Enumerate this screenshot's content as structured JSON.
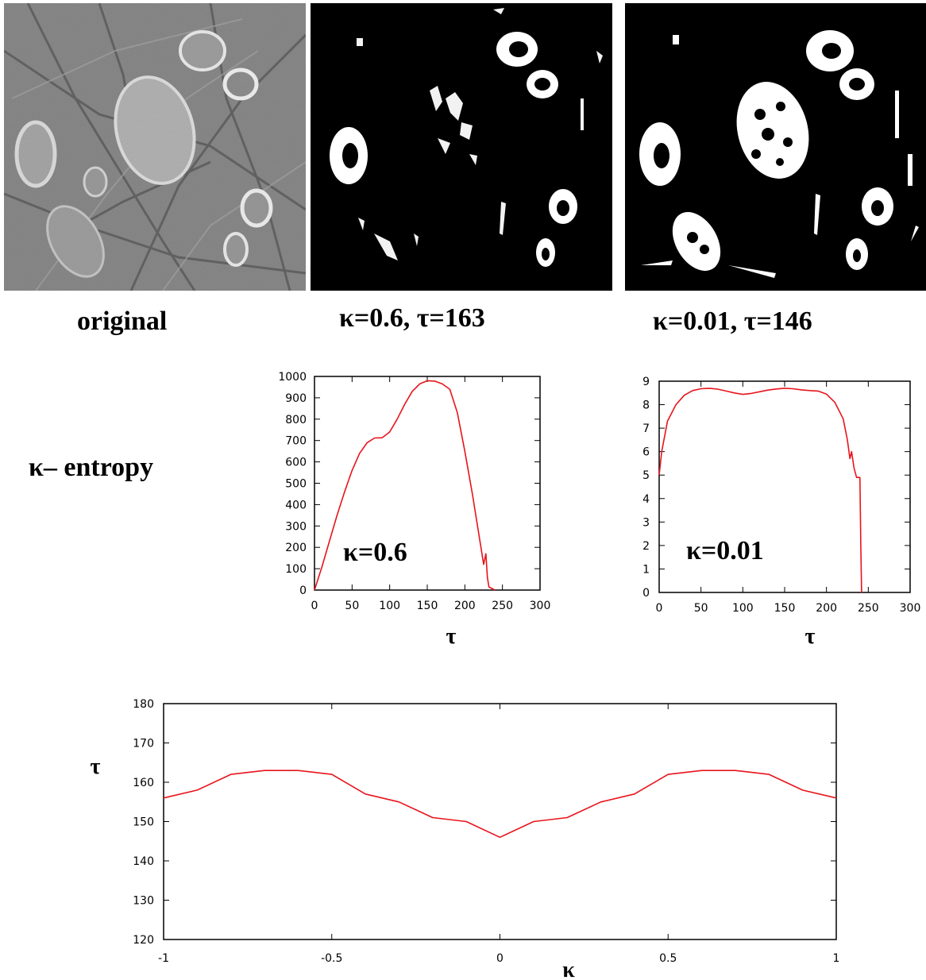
{
  "images": {
    "original_caption": "original",
    "kappa06_caption": "κ=0.6, τ=163",
    "kappa001_caption": "κ=0.01, τ=146"
  },
  "row_label": "κ– entropy",
  "colors": {
    "curve": "#e8141c",
    "axis": "#000000",
    "background": "#ffffff"
  },
  "chart_data": [
    {
      "type": "line",
      "annotation": "κ=0.6",
      "xlabel": "τ",
      "ylabel": "",
      "xlim": [
        0,
        300
      ],
      "ylim": [
        0,
        1000
      ],
      "xticks": [
        "0",
        "50",
        "100",
        "150",
        "200",
        "250",
        "300"
      ],
      "yticks": [
        "0",
        "100",
        "200",
        "300",
        "400",
        "500",
        "600",
        "700",
        "800",
        "900",
        "1000"
      ],
      "x": [
        0,
        10,
        20,
        30,
        40,
        50,
        60,
        70,
        80,
        90,
        100,
        110,
        120,
        130,
        140,
        150,
        160,
        170,
        180,
        190,
        200,
        210,
        220,
        225,
        228,
        230,
        232,
        240
      ],
      "y": [
        0,
        110,
        230,
        350,
        460,
        560,
        640,
        690,
        712,
        713,
        740,
        800,
        870,
        930,
        965,
        980,
        978,
        965,
        940,
        830,
        650,
        450,
        230,
        120,
        170,
        60,
        15,
        0
      ]
    },
    {
      "type": "line",
      "annotation": "κ=0.01",
      "xlabel": "τ",
      "ylabel": "",
      "xlim": [
        0,
        300
      ],
      "ylim": [
        0,
        9
      ],
      "xticks": [
        "0",
        "50",
        "100",
        "150",
        "200",
        "250",
        "300"
      ],
      "yticks": [
        "0",
        "1",
        "2",
        "3",
        "4",
        "5",
        "6",
        "7",
        "8",
        "9"
      ],
      "x": [
        0,
        3,
        10,
        20,
        30,
        40,
        50,
        60,
        70,
        80,
        90,
        100,
        110,
        120,
        130,
        140,
        150,
        160,
        170,
        180,
        190,
        200,
        210,
        220,
        225,
        228,
        230,
        233,
        236,
        240,
        241,
        242
      ],
      "y": [
        5.0,
        6.0,
        7.3,
        8.0,
        8.4,
        8.6,
        8.68,
        8.7,
        8.66,
        8.58,
        8.5,
        8.44,
        8.48,
        8.55,
        8.62,
        8.67,
        8.7,
        8.68,
        8.63,
        8.6,
        8.58,
        8.45,
        8.1,
        7.4,
        6.5,
        5.7,
        6.0,
        5.3,
        4.9,
        4.9,
        2.0,
        0
      ]
    },
    {
      "type": "line",
      "xlabel": "κ",
      "ylabel": "τ",
      "xlim": [
        -1,
        1
      ],
      "ylim": [
        120,
        180
      ],
      "xticks": [
        "-1",
        "-0.5",
        "0",
        "0.5",
        "1"
      ],
      "yticks": [
        "120",
        "130",
        "140",
        "150",
        "160",
        "170",
        "180"
      ],
      "x": [
        -1,
        -0.9,
        -0.8,
        -0.7,
        -0.6,
        -0.5,
        -0.4,
        -0.3,
        -0.2,
        -0.1,
        0,
        0.1,
        0.2,
        0.3,
        0.4,
        0.5,
        0.6,
        0.7,
        0.8,
        0.9,
        1
      ],
      "y": [
        156,
        158,
        162,
        163,
        163,
        162,
        157,
        155,
        151,
        150,
        146,
        150,
        151,
        155,
        157,
        162,
        163,
        163,
        162,
        158,
        156
      ]
    }
  ]
}
